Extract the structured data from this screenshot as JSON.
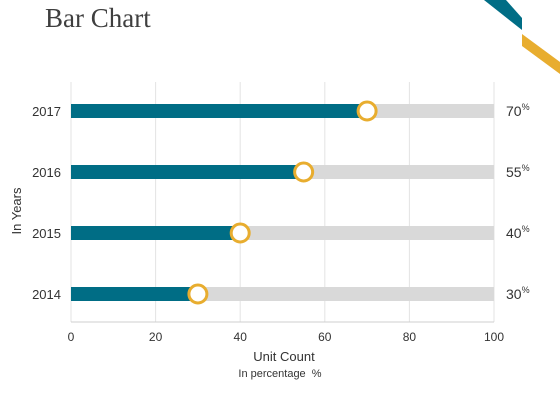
{
  "slide": {
    "title": "Bar Chart"
  },
  "colors": {
    "bar": "#006d85",
    "track": "#d9d9d9",
    "marker": "#e8ad2f",
    "grid": "#e3e3e3",
    "text": "#333333",
    "corner_teal": "#006d85",
    "corner_gold": "#e8ad2f"
  },
  "chart_data": {
    "type": "bar",
    "orientation": "horizontal",
    "categories": [
      "2017",
      "2016",
      "2015",
      "2014"
    ],
    "values": [
      70,
      55,
      40,
      30
    ],
    "value_labels": [
      "70",
      "55",
      "40",
      "30"
    ],
    "value_suffix": "%",
    "xlim": [
      0,
      100
    ],
    "xticks": [
      "0",
      "20",
      "40",
      "60",
      "80",
      "100"
    ],
    "xlabel": "Unit Count",
    "xlabel_sub": "In percentage  %",
    "ylabel": "In Years",
    "grid": true,
    "marker": "ring"
  }
}
